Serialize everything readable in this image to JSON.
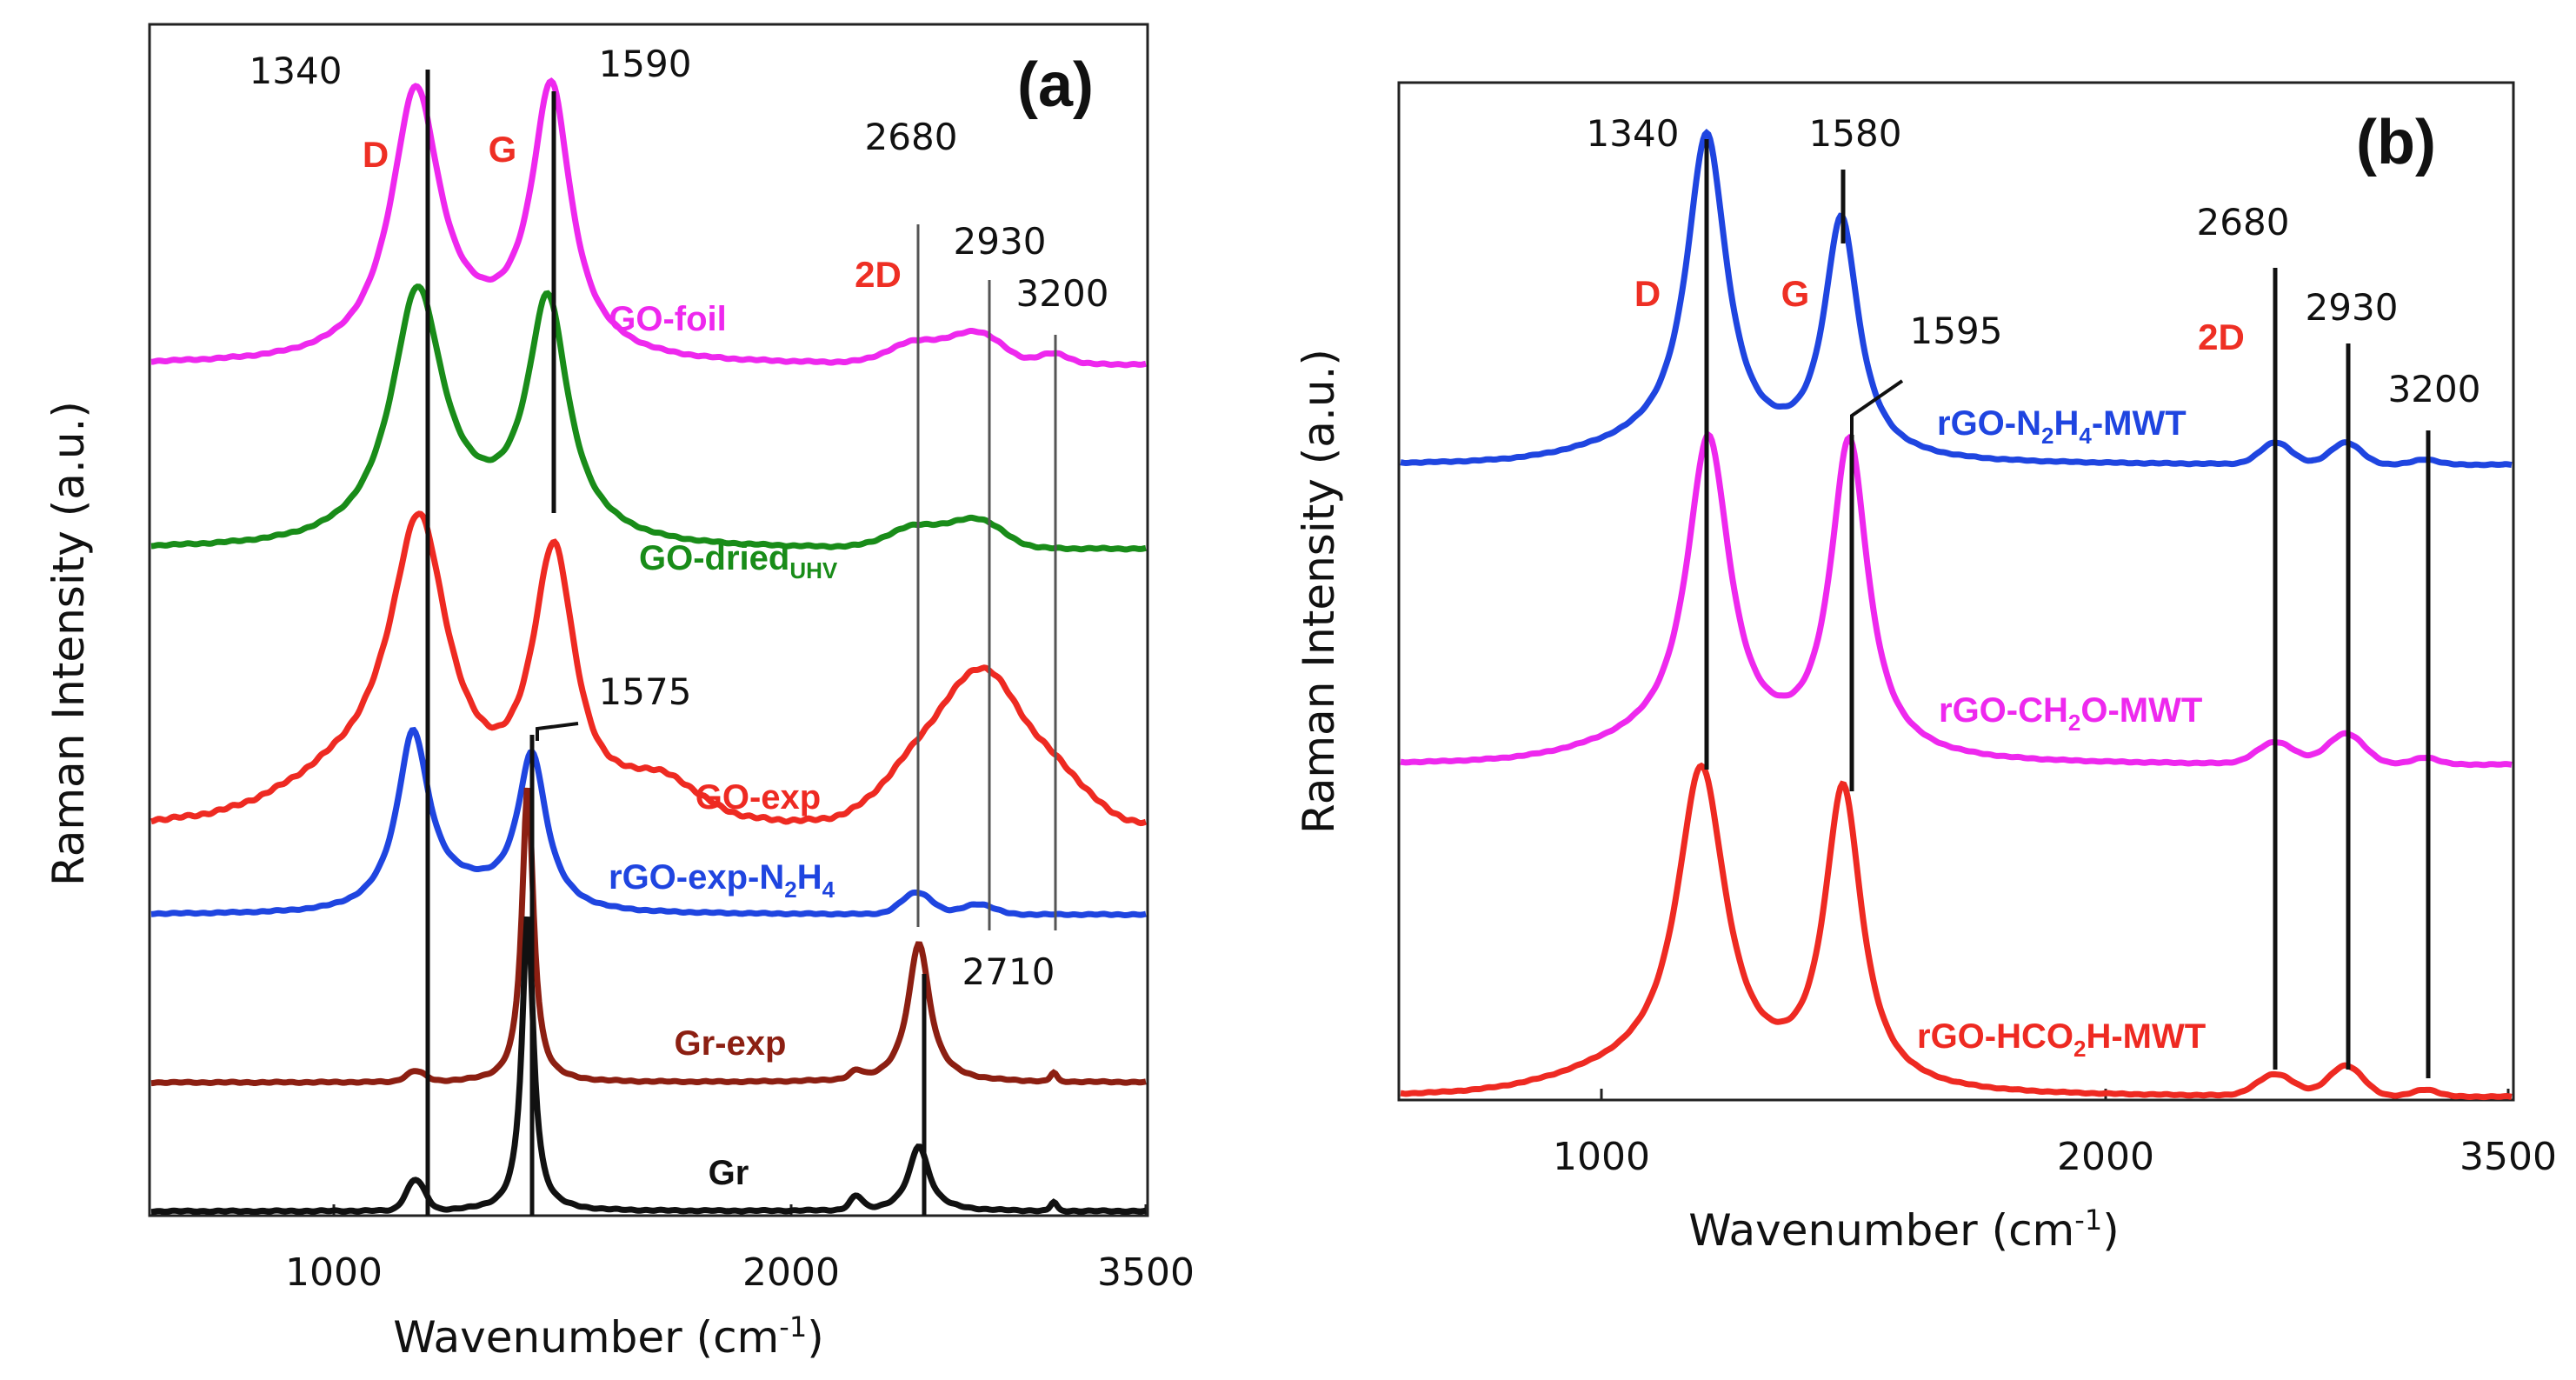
{
  "chart_data": [
    {
      "panel": "(a)",
      "type": "line",
      "xlabel": "Wavenumber (cm-1)",
      "xlabel_main": "Wavenumber (cm",
      "xlabel_sup": "-1",
      "xlabel_end": ")",
      "ylabel": "Raman Intensity (a.u.)",
      "x_ticks": [
        "1000",
        "2000",
        "3500"
      ],
      "band_labels": [
        "D",
        "G",
        "2D"
      ],
      "peak_markers": [
        "1340",
        "1590",
        "1575",
        "2680",
        "2930",
        "3200",
        "2710"
      ],
      "series": [
        {
          "name": "GO-foil",
          "text": "GO-foil",
          "color": "#ee28ee",
          "peaks": {
            "D": 1340,
            "G": 1590,
            "2D": 2680,
            "D+G": 2930,
            "2D'": 3200
          }
        },
        {
          "name": "GO-dried UHV",
          "text": "GO-dried",
          "sub": "UHV",
          "color": "#198c19",
          "peaks": {
            "D": 1340,
            "G": 1590,
            "2D": 2680,
            "D+G": 2930
          }
        },
        {
          "name": "GO-exp",
          "text": "GO-exp",
          "color": "#ee2a22",
          "peaks": {
            "D": 1340,
            "G": 1590,
            "2D": 2680,
            "D+G": 2930
          }
        },
        {
          "name": "rGO-exp-N2H4",
          "pre": "rGO-exp-N",
          "sub": "2",
          "post": "H",
          "sub2": "4",
          "color": "#1f45e0",
          "peaks": {
            "D": 1340,
            "G": 1575,
            "2D": 2680,
            "D+G": 2930
          }
        },
        {
          "name": "Gr-exp",
          "text": "Gr-exp",
          "color": "#8c1f12",
          "peaks": {
            "G": 1575,
            "2D": 2710
          }
        },
        {
          "name": "Gr",
          "text": "Gr",
          "color": "#111111",
          "peaks": {
            "G": 1575,
            "2D": 2710
          }
        }
      ]
    },
    {
      "panel": "(b)",
      "type": "line",
      "xlabel": "Wavenumber (cm-1)",
      "xlabel_main": "Wavenumber (cm",
      "xlabel_sup": "-1",
      "xlabel_end": ")",
      "ylabel": "Raman Intensity (a.u.)",
      "x_ticks": [
        "1000",
        "2000",
        "3500"
      ],
      "band_labels": [
        "D",
        "G",
        "2D"
      ],
      "peak_markers": [
        "1340",
        "1580",
        "1595",
        "2680",
        "2930",
        "3200"
      ],
      "series": [
        {
          "name": "rGO-N2H4-MWT",
          "pre": "rGO-N",
          "sub": "2",
          "post": "H",
          "sub2": "4",
          "post2": "-MWT",
          "color": "#1f45e0",
          "peaks": {
            "D": 1340,
            "G": 1580,
            "2D": 2680,
            "D+G": 2930,
            "2D'": 3200
          }
        },
        {
          "name": "rGO-CH2O-MWT",
          "pre": "rGO-CH",
          "sub": "2",
          "post": "O-MWT",
          "color": "#ee28ee",
          "peaks": {
            "D": 1340,
            "G": 1595,
            "2D": 2680,
            "D+G": 2930
          }
        },
        {
          "name": "rGO-HCO2H-MWT",
          "pre": "rGO-HCO",
          "sub": "2",
          "post": "H-MWT",
          "color": "#ee2a22",
          "peaks": {
            "D": 1340,
            "G": 1595,
            "2D": 2680,
            "D+G": 2930
          }
        }
      ]
    }
  ]
}
